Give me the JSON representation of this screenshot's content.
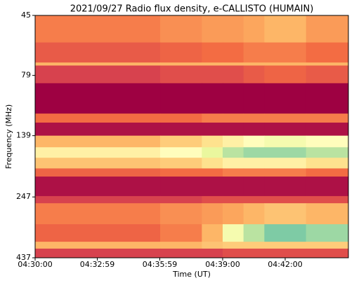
{
  "chart_data": {
    "type": "heatmap",
    "title": "2021/09/27  Radio flux density, e-CALLISTO (HUMAIN)",
    "x_label": "Time (UT)",
    "y_label": "Frequency (MHz)",
    "xbins": [
      16200,
      16380,
      16560,
      16680,
      16740,
      16800,
      16860,
      16980,
      17102
    ],
    "ybins": [
      45,
      58,
      70,
      72,
      85,
      113,
      123,
      139,
      155,
      171,
      189,
      204,
      245,
      262,
      319,
      376,
      401,
      437
    ],
    "values": [
      [
        0.25,
        0.25,
        0.28,
        0.3,
        0.3,
        0.32,
        0.35,
        0.3
      ],
      [
        0.18,
        0.18,
        0.2,
        0.22,
        0.22,
        0.25,
        0.25,
        0.22
      ],
      [
        0.35,
        0.35,
        0.35,
        0.35,
        0.35,
        0.35,
        0.35,
        0.35
      ],
      [
        0.12,
        0.12,
        0.15,
        0.15,
        0.15,
        0.18,
        0.2,
        0.18
      ],
      [
        0,
        0,
        0,
        0,
        0,
        0,
        0,
        0
      ],
      [
        0.22,
        0.22,
        0.22,
        0.25,
        0.25,
        0.25,
        0.25,
        0.25
      ],
      [
        0.03,
        0.03,
        0.03,
        0.03,
        0.03,
        0.03,
        0.03,
        0.03
      ],
      [
        0.35,
        0.35,
        0.4,
        0.45,
        0.5,
        0.55,
        0.6,
        0.55
      ],
      [
        0.5,
        0.5,
        0.55,
        0.65,
        0.75,
        0.8,
        0.8,
        0.75
      ],
      [
        0.38,
        0.38,
        0.4,
        0.45,
        0.5,
        0.5,
        0.5,
        0.45
      ],
      [
        0.2,
        0.2,
        0.22,
        0.22,
        0.25,
        0.25,
        0.25,
        0.22
      ],
      [
        0.03,
        0.03,
        0.03,
        0.03,
        0.03,
        0.03,
        0.03,
        0.03
      ],
      [
        0.12,
        0.12,
        0.12,
        0.15,
        0.15,
        0.15,
        0.15,
        0.15
      ],
      [
        0.25,
        0.25,
        0.28,
        0.3,
        0.32,
        0.35,
        0.38,
        0.35
      ],
      [
        0.2,
        0.2,
        0.25,
        0.35,
        0.6,
        0.75,
        0.85,
        0.8
      ],
      [
        0.35,
        0.35,
        0.35,
        0.38,
        0.4,
        0.4,
        0.4,
        0.4
      ],
      [
        0.12,
        0.12,
        0.12,
        0.12,
        0.15,
        0.15,
        0.15,
        0.15
      ]
    ],
    "clim": [
      0,
      1
    ],
    "colormap": [
      "#9e0142",
      "#d53e4f",
      "#f46d43",
      "#fdae61",
      "#fee08b",
      "#ffffbf",
      "#e6f598",
      "#abdda4",
      "#66c2a5",
      "#3288bd"
    ],
    "xlim": [
      16200,
      17102
    ],
    "xticks": [
      {
        "value": 16200,
        "label": "04:30:00"
      },
      {
        "value": 16379,
        "label": "04:32:59"
      },
      {
        "value": 16559,
        "label": "04:35:59"
      },
      {
        "value": 16740,
        "label": "04:39:00"
      },
      {
        "value": 16920,
        "label": "04:42:00"
      }
    ],
    "ylim": [
      437,
      45
    ],
    "yticks": [
      45,
      79,
      139,
      247,
      437
    ],
    "yscale": "log"
  }
}
